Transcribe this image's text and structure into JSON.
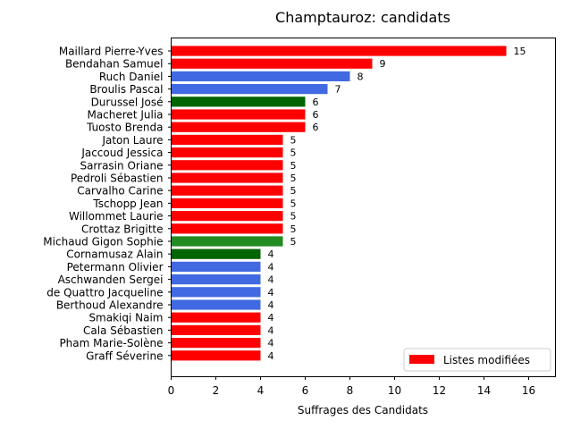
{
  "chart_data": {
    "type": "bar",
    "orientation": "horizontal",
    "title": "Champtauroz: candidats",
    "xlabel": "Suffrages des Candidats",
    "ylabel": "",
    "xlim": [
      0,
      17.2
    ],
    "xticks": [
      0,
      2,
      4,
      6,
      8,
      10,
      12,
      14,
      16
    ],
    "grid": false,
    "legend": {
      "position": "bottom-right",
      "entries": [
        {
          "label": "Listes modifiées",
          "color": "#ff0000"
        }
      ]
    },
    "bars": [
      {
        "name": "Maillard Pierre-Yves",
        "value": 15,
        "color": "#ff0000"
      },
      {
        "name": "Bendahan Samuel",
        "value": 9,
        "color": "#ff0000"
      },
      {
        "name": "Ruch Daniel",
        "value": 8,
        "color": "#4169e1"
      },
      {
        "name": "Broulis Pascal",
        "value": 7,
        "color": "#4169e1"
      },
      {
        "name": "Durussel José",
        "value": 6,
        "color": "#006400"
      },
      {
        "name": "Macheret Julia",
        "value": 6,
        "color": "#ff0000"
      },
      {
        "name": "Tuosto Brenda",
        "value": 6,
        "color": "#ff0000"
      },
      {
        "name": "Jaton Laure",
        "value": 5,
        "color": "#ff0000"
      },
      {
        "name": "Jaccoud Jessica",
        "value": 5,
        "color": "#ff0000"
      },
      {
        "name": "Sarrasin Oriane",
        "value": 5,
        "color": "#ff0000"
      },
      {
        "name": "Pedroli Sébastien",
        "value": 5,
        "color": "#ff0000"
      },
      {
        "name": "Carvalho Carine",
        "value": 5,
        "color": "#ff0000"
      },
      {
        "name": "Tschopp Jean",
        "value": 5,
        "color": "#ff0000"
      },
      {
        "name": "Willommet Laurie",
        "value": 5,
        "color": "#ff0000"
      },
      {
        "name": "Crottaz Brigitte",
        "value": 5,
        "color": "#ff0000"
      },
      {
        "name": "Michaud Gigon Sophie",
        "value": 5,
        "color": "#228b22"
      },
      {
        "name": "Cornamusaz Alain",
        "value": 4,
        "color": "#006400"
      },
      {
        "name": "Petermann Olivier",
        "value": 4,
        "color": "#4169e1"
      },
      {
        "name": "Aschwanden Sergei",
        "value": 4,
        "color": "#4169e1"
      },
      {
        "name": "de Quattro Jacqueline",
        "value": 4,
        "color": "#4169e1"
      },
      {
        "name": "Berthoud Alexandre",
        "value": 4,
        "color": "#4169e1"
      },
      {
        "name": "Smakiqi Naim",
        "value": 4,
        "color": "#ff0000"
      },
      {
        "name": "Cala Sébastien",
        "value": 4,
        "color": "#ff0000"
      },
      {
        "name": "Pham Marie-Solène",
        "value": 4,
        "color": "#ff0000"
      },
      {
        "name": "Graff Séverine",
        "value": 4,
        "color": "#ff0000"
      }
    ]
  }
}
